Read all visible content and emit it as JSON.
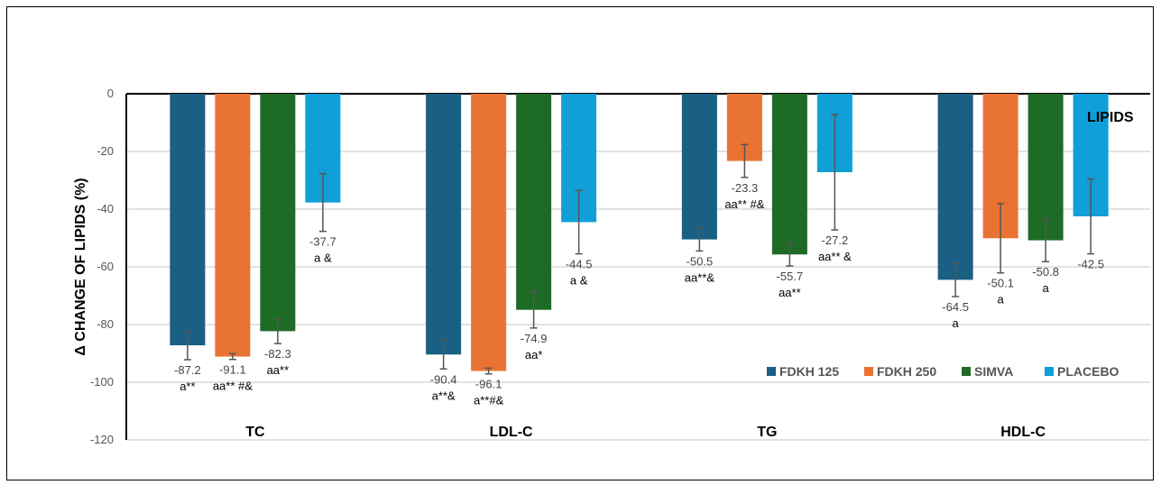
{
  "chart_data": {
    "type": "bar",
    "title": "LIPIDS",
    "xlabel": "",
    "ylabel": "Δ CHANGE OF LIPIDS  (%)",
    "ylim": [
      -120,
      0
    ],
    "yticks": [
      0,
      -20,
      -40,
      -60,
      -80,
      -100,
      -120
    ],
    "grid": true,
    "legend_position": "bottom-right",
    "categories": [
      "TC",
      "LDL-C",
      "TG",
      "HDL-C"
    ],
    "series": [
      {
        "name": "FDKH 125",
        "color": "#1a5f84",
        "values": [
          -87.2,
          -90.4,
          -50.5,
          -64.5
        ],
        "errors": [
          5,
          5,
          4,
          5.8
        ],
        "labels": [
          "-87.2",
          "-90.4",
          "-50.5",
          "-64.5"
        ],
        "annotations": [
          "a**",
          "a**&",
          "aa**&",
          "a"
        ]
      },
      {
        "name": "FDKH 250",
        "color": "#e97333",
        "values": [
          -91.1,
          -96.1,
          -23.3,
          -50.1
        ],
        "errors": [
          1,
          1,
          5.7,
          12
        ],
        "labels": [
          "-91.1",
          "-96.1",
          "-23.3",
          "-50.1"
        ],
        "annotations": [
          "aa** #&",
          "a**#&",
          "aa** #&",
          "a"
        ]
      },
      {
        "name": "SIMVA",
        "color": "#1e6b26",
        "values": [
          -82.3,
          -74.9,
          -55.7,
          -50.8
        ],
        "errors": [
          4.3,
          6.3,
          4,
          7.4
        ],
        "labels": [
          "-82.3",
          "-74.9",
          "-55.7",
          "-50.8"
        ],
        "annotations": [
          "aa**",
          "aa*",
          "aa**",
          "a"
        ]
      },
      {
        "name": "PLACEBO",
        "color": "#119fd7",
        "values": [
          -37.7,
          -44.5,
          -27.2,
          -42.5
        ],
        "errors": [
          10,
          11,
          20,
          13
        ],
        "labels": [
          "-37.7",
          "-44.5",
          "-27.2",
          "-42.5"
        ],
        "annotations": [
          "a &",
          "a &",
          "aa** &",
          ""
        ]
      }
    ]
  }
}
